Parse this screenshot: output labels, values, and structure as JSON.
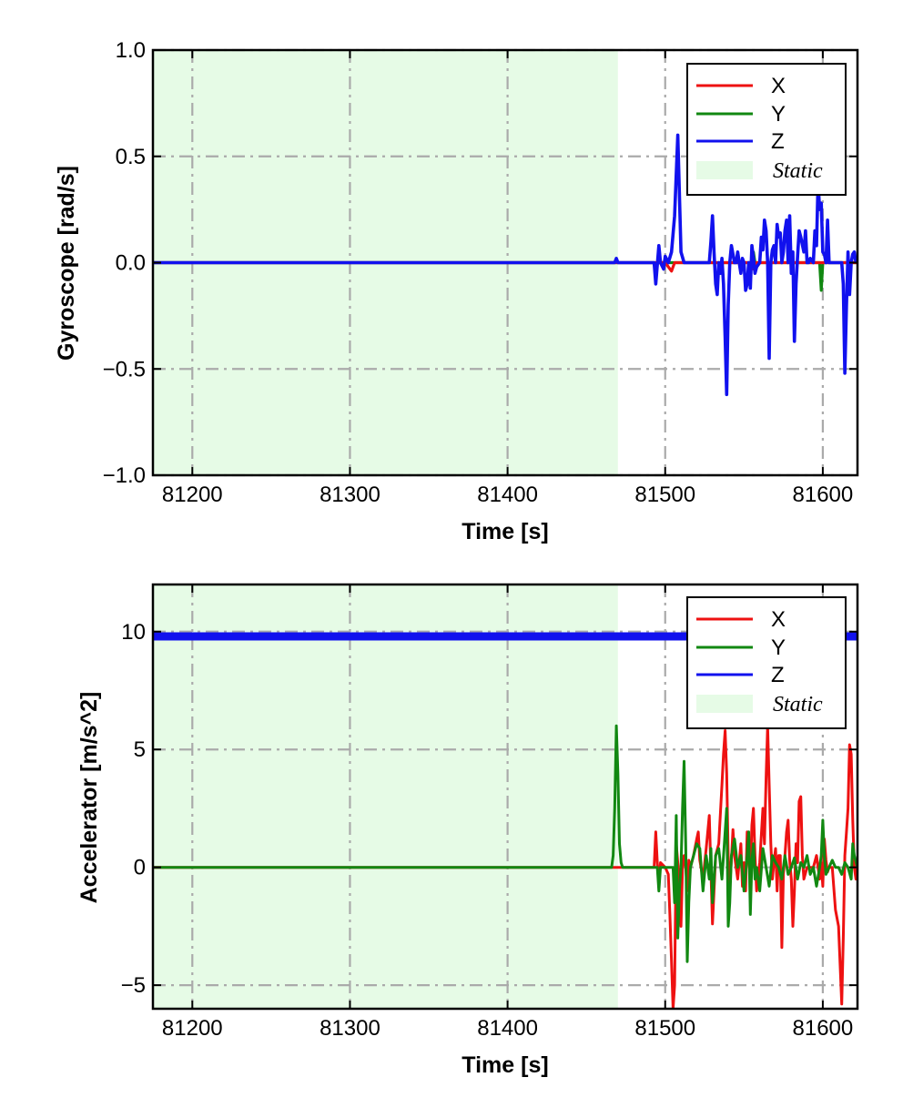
{
  "colors": {
    "x": "#ee1111",
    "y": "#118811",
    "z": "#1111ee",
    "static_fill": "#e6fbe6",
    "grid": "#aaaaaa"
  },
  "chart_data": [
    {
      "type": "line",
      "xlabel": "Time [s]",
      "ylabel": "Gyroscope [rad/s]",
      "xlim": [
        81175,
        81622
      ],
      "ylim": [
        -1.0,
        1.0
      ],
      "xticks": [
        81200,
        81300,
        81400,
        81500,
        81600
      ],
      "xtick_labels": [
        "81200",
        "81300",
        "81400",
        "81500",
        "81600"
      ],
      "yticks": [
        1.0,
        0.5,
        0.0,
        -0.5,
        -1.0
      ],
      "ytick_labels": [
        "1.0",
        "0.5",
        "0.0",
        "−0.5",
        "−1.0"
      ],
      "grid": true,
      "legend_position": "top-right",
      "static_span": {
        "label": "Static",
        "x": [
          81175,
          81470
        ]
      },
      "series": [
        {
          "name": "X",
          "color": "#ee1111",
          "x": [
            81175,
            81470,
            81500,
            81504,
            81506,
            81508,
            81520,
            81555,
            81556,
            81558,
            81600,
            81622
          ],
          "y": [
            0.0,
            0.0,
            0.0,
            -0.04,
            0.0,
            0.0,
            0.0,
            0.0,
            -0.03,
            0.0,
            0.0,
            0.0
          ]
        },
        {
          "name": "Y",
          "color": "#118811",
          "x": [
            81175,
            81540,
            81555,
            81556,
            81557,
            81598,
            81599,
            81600,
            81601,
            81622
          ],
          "y": [
            0.0,
            0.0,
            0.0,
            0.05,
            0.0,
            0.0,
            -0.13,
            0.0,
            0.0,
            0.0
          ]
        },
        {
          "name": "Z",
          "color": "#1111ee",
          "x": [
            81175,
            81468,
            81469,
            81470,
            81493,
            81494,
            81496,
            81497,
            81499,
            81500,
            81502,
            81504,
            81506,
            81508,
            81510,
            81512,
            81520,
            81528,
            81529,
            81530,
            81531,
            81532,
            81533,
            81534,
            81535,
            81536,
            81537,
            81538,
            81539,
            81540,
            81541,
            81542,
            81544,
            81545,
            81546,
            81547,
            81548,
            81549,
            81550,
            81551,
            81552,
            81553,
            81554,
            81555,
            81556,
            81557,
            81558,
            81560,
            81561,
            81562,
            81563,
            81564,
            81565,
            81566,
            81567,
            81568,
            81569,
            81570,
            81571,
            81572,
            81573,
            81574,
            81575,
            81576,
            81577,
            81578,
            81579,
            81580,
            81581,
            81582,
            81583,
            81584,
            81585,
            81586,
            81588,
            81589,
            81590,
            81591,
            81592,
            81594,
            81595,
            81596,
            81597,
            81598,
            81599,
            81600,
            81601,
            81602,
            81603,
            81604,
            81605,
            81606,
            81608,
            81610,
            81612,
            81613,
            81614,
            81615,
            81616,
            81617,
            81618,
            81619,
            81620,
            81621
          ],
          "y": [
            0.0,
            0.0,
            0.02,
            0.0,
            0.0,
            -0.1,
            0.08,
            0.0,
            -0.03,
            0.03,
            0.0,
            0.05,
            0.22,
            0.6,
            0.05,
            0.0,
            0.0,
            0.0,
            0.1,
            0.22,
            0.05,
            -0.1,
            -0.15,
            0.0,
            -0.05,
            0.02,
            -0.1,
            -0.35,
            -0.62,
            -0.2,
            0.0,
            0.08,
            0.0,
            0.0,
            0.05,
            0.0,
            -0.05,
            0.02,
            0.0,
            -0.13,
            -0.1,
            0.0,
            -0.12,
            0.08,
            0.02,
            -0.05,
            -0.02,
            0.0,
            0.12,
            0.06,
            0.2,
            0.15,
            0.0,
            -0.45,
            0.0,
            0.06,
            0.08,
            0.0,
            0.18,
            0.12,
            0.14,
            0.0,
            0.05,
            0.15,
            0.2,
            0.0,
            0.22,
            -0.05,
            0.05,
            -0.37,
            -0.1,
            0.03,
            0.15,
            0.12,
            0.05,
            0.15,
            0.0,
            0.0,
            0.02,
            0.0,
            0.15,
            0.08,
            0.38,
            0.25,
            0.28,
            0.05,
            0.04,
            0.0,
            0.2,
            0.0,
            0.0,
            0.0,
            0.0,
            0.0,
            0.0,
            -0.1,
            -0.52,
            -0.2,
            0.05,
            -0.15,
            0.0,
            0.04,
            0.05,
            0.0
          ]
        }
      ]
    },
    {
      "type": "line",
      "xlabel": "Time [s]",
      "ylabel": "Accelerator [m/s^2]",
      "xlim": [
        81175,
        81622
      ],
      "ylim": [
        -6,
        12
      ],
      "xticks": [
        81200,
        81300,
        81400,
        81500,
        81600
      ],
      "xtick_labels": [
        "81200",
        "81300",
        "81400",
        "81500",
        "81600"
      ],
      "yticks": [
        10,
        5,
        0,
        -5
      ],
      "ytick_labels": [
        "10",
        "5",
        "0",
        "−5"
      ],
      "grid": true,
      "legend_position": "top-right",
      "static_span": {
        "label": "Static",
        "x": [
          81175,
          81470
        ]
      },
      "series": [
        {
          "name": "X",
          "color": "#ee1111",
          "x": [
            81175,
            81493,
            81494,
            81495,
            81496,
            81497,
            81500,
            81502,
            81503,
            81504,
            81505,
            81506,
            81507,
            81508,
            81509,
            81510,
            81511,
            81512,
            81513,
            81514,
            81515,
            81516,
            81518,
            81520,
            81521,
            81522,
            81524,
            81526,
            81528,
            81530,
            81532,
            81534,
            81536,
            81537,
            81538,
            81539,
            81540,
            81541,
            81542,
            81543,
            81544,
            81546,
            81548,
            81549,
            81550,
            81551,
            81552,
            81553,
            81554,
            81555,
            81556,
            81557,
            81558,
            81560,
            81562,
            81563,
            81564,
            81565,
            81566,
            81567,
            81568,
            81569,
            81570,
            81571,
            81572,
            81573,
            81574,
            81575,
            81576,
            81577,
            81578,
            81579,
            81580,
            81581,
            81582,
            81583,
            81584,
            81585,
            81586,
            81587,
            81588,
            81590,
            81592,
            81594,
            81596,
            81598,
            81599,
            81600,
            81601,
            81602,
            81603,
            81604,
            81606,
            81608,
            81610,
            81612,
            81613,
            81614,
            81615,
            81616,
            81617,
            81618,
            81619,
            81620,
            81621,
            81622
          ],
          "y": [
            0.0,
            0.0,
            1.5,
            0.2,
            -0.8,
            0.2,
            0.0,
            -0.3,
            -2.0,
            -4.0,
            -6.0,
            -5.0,
            1.0,
            0.2,
            -0.5,
            -2.5,
            0.0,
            0.5,
            0.0,
            -1.0,
            0.3,
            0.0,
            0.5,
            1.2,
            1.5,
            0.3,
            -0.5,
            0.8,
            2.2,
            -2.4,
            0.5,
            1.0,
            3.5,
            4.8,
            5.8,
            4.0,
            0.5,
            -0.8,
            0.3,
            1.6,
            0.5,
            -0.5,
            1.0,
            -0.8,
            0.2,
            -1.0,
            1.5,
            0.3,
            -0.4,
            1.8,
            2.5,
            0.5,
            -1.0,
            0.2,
            2.5,
            1.0,
            3.8,
            6.0,
            3.5,
            1.0,
            -0.5,
            0.2,
            0.8,
            -1.0,
            0.5,
            0.5,
            -3.4,
            -0.3,
            0.5,
            1.5,
            2.0,
            0.3,
            -0.5,
            -2.5,
            -1.0,
            1.0,
            0.2,
            2.8,
            3.0,
            0.5,
            -0.5,
            0.0,
            0.0,
            0.0,
            0.5,
            -0.5,
            0.2,
            -0.8,
            1.2,
            0.3,
            -0.2,
            0.0,
            0.0,
            -1.8,
            -2.5,
            -5.8,
            -3.0,
            0.5,
            1.5,
            2.5,
            5.2,
            4.8,
            2.0,
            0.0,
            -0.5,
            0.0
          ]
        },
        {
          "name": "Y",
          "color": "#118811",
          "x": [
            81175,
            81466,
            81467,
            81468,
            81469,
            81470,
            81471,
            81472,
            81473,
            81474,
            81475,
            81495,
            81496,
            81497,
            81505,
            81506,
            81507,
            81508,
            81509,
            81510,
            81511,
            81512,
            81513,
            81514,
            81515,
            81516,
            81518,
            81520,
            81522,
            81524,
            81526,
            81528,
            81529,
            81530,
            81532,
            81534,
            81536,
            81538,
            81539,
            81540,
            81541,
            81542,
            81544,
            81546,
            81548,
            81550,
            81552,
            81553,
            81554,
            81555,
            81556,
            81557,
            81558,
            81560,
            81562,
            81564,
            81566,
            81568,
            81570,
            81572,
            81574,
            81576,
            81578,
            81580,
            81582,
            81584,
            81586,
            81588,
            81590,
            81592,
            81594,
            81596,
            81598,
            81599,
            81600,
            81601,
            81602,
            81604,
            81606,
            81608,
            81610,
            81612,
            81614,
            81616,
            81618,
            81619,
            81620,
            81622
          ],
          "y": [
            0.0,
            0.0,
            0.5,
            2.5,
            6.0,
            4.0,
            1.0,
            0.2,
            0.0,
            0.0,
            0.0,
            0.0,
            -1.0,
            0.0,
            0.0,
            -1.5,
            2.2,
            -3.0,
            -1.0,
            0.0,
            2.5,
            4.5,
            1.0,
            -4.0,
            -1.5,
            0.0,
            0.5,
            1.0,
            0.8,
            -1.0,
            0.5,
            -0.5,
            0.8,
            -1.5,
            0.5,
            0.8,
            -0.5,
            1.5,
            2.5,
            -2.5,
            -1.5,
            0.5,
            1.2,
            0.0,
            0.5,
            -1.0,
            0.5,
            1.5,
            -2.0,
            0.3,
            1.0,
            -0.5,
            0.0,
            -1.0,
            0.8,
            0.0,
            -0.8,
            0.5,
            0.2,
            0.0,
            -0.5,
            0.5,
            -0.3,
            0.0,
            0.4,
            -0.5,
            0.2,
            0.0,
            0.5,
            -0.3,
            0.0,
            -0.8,
            0.0,
            0.5,
            2.0,
            0.5,
            -0.3,
            0.0,
            0.3,
            0.0,
            0.0,
            -0.3,
            0.2,
            0.0,
            -0.5,
            1.0,
            0.5,
            0.0
          ]
        },
        {
          "name": "Z",
          "color": "#1111ee",
          "x": [
            81175,
            81622
          ],
          "y": [
            9.8,
            9.8
          ]
        }
      ]
    }
  ]
}
